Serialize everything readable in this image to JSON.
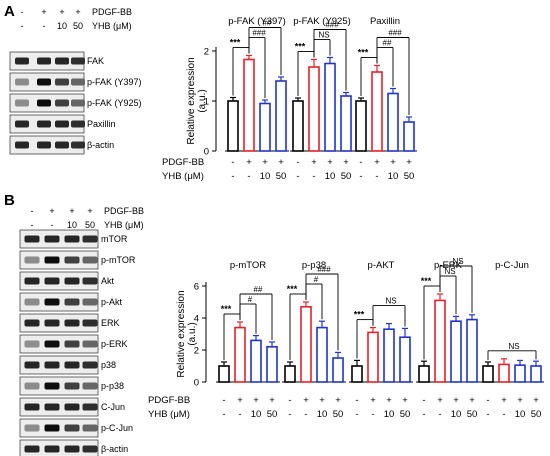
{
  "panel_a": {
    "letter": "A",
    "treatments": {
      "pdgf_label": "PDGF-BB",
      "yhb_label": "YHB (μM)",
      "pdgf": [
        "-",
        "+",
        "+",
        "+"
      ],
      "yhb": [
        "-",
        "-",
        "10",
        "50"
      ]
    },
    "blots": [
      "FAK",
      "p-FAK (Y397)",
      "p-FAK (Y925)",
      "Paxillin",
      "β-actin"
    ]
  },
  "panel_b": {
    "letter": "B",
    "treatments": {
      "pdgf_label": "PDGF-BB",
      "yhb_label": "YHB (μM)",
      "pdgf": [
        "-",
        "+",
        "+",
        "+"
      ],
      "yhb": [
        "-",
        "-",
        "10",
        "50"
      ]
    },
    "blots": [
      "mTOR",
      "p-mTOR",
      "Akt",
      "p-Akt",
      "ERK",
      "p-ERK",
      "p38",
      "p-p38",
      "C-Jun",
      "p-C-Jun",
      "β-actin"
    ]
  },
  "colors": {
    "control": "#000000",
    "pdgf": "#e8202a",
    "yhb": "#2035c8"
  },
  "chart_data": [
    {
      "type": "bar",
      "panel": "A",
      "ylabel": "Relative expression",
      "yunit": "(a.u.)",
      "ylim": [
        0,
        2
      ],
      "yticks": [
        0,
        1,
        2
      ],
      "row_labels": [
        "PDGF-BB",
        "YHB (μM)"
      ],
      "pdgf": [
        "-",
        "+",
        "+",
        "+"
      ],
      "yhb": [
        "-",
        "-",
        "10",
        "50"
      ],
      "groups": [
        {
          "title": "p-FAK (Y397)",
          "values": [
            1.0,
            1.83,
            0.95,
            1.4
          ],
          "errors": [
            0.07,
            0.08,
            0.07,
            0.08
          ],
          "sig": [
            {
              "label": "***",
              "from": 0,
              "to": 1
            },
            {
              "label": "###",
              "from": 1,
              "to": 2
            },
            {
              "label": "##",
              "from": 1,
              "to": 3
            }
          ]
        },
        {
          "title": "p-FAK (Y925)",
          "values": [
            1.0,
            1.68,
            1.75,
            1.1
          ],
          "errors": [
            0.06,
            0.15,
            0.12,
            0.07
          ],
          "sig": [
            {
              "label": "***",
              "from": 0,
              "to": 1
            },
            {
              "label": "NS",
              "from": 1,
              "to": 2
            },
            {
              "label": "###",
              "from": 1,
              "to": 3
            }
          ]
        },
        {
          "title": "Paxillin",
          "values": [
            1.0,
            1.58,
            1.15,
            0.58
          ],
          "errors": [
            0.06,
            0.13,
            0.1,
            0.1
          ],
          "sig": [
            {
              "label": "***",
              "from": 0,
              "to": 1
            },
            {
              "label": "##",
              "from": 1,
              "to": 2
            },
            {
              "label": "###",
              "from": 1,
              "to": 3
            }
          ]
        }
      ]
    },
    {
      "type": "bar",
      "panel": "B",
      "ylabel": "Relative expression",
      "yunit": "(a.u.)",
      "ylim": [
        0,
        6
      ],
      "yticks": [
        0,
        2,
        4,
        6
      ],
      "row_labels": [
        "PDGF-BB",
        "YHB (μM)"
      ],
      "pdgf": [
        "-",
        "+",
        "+",
        "+"
      ],
      "yhb": [
        "-",
        "-",
        "10",
        "50"
      ],
      "groups": [
        {
          "title": "p-mTOR",
          "values": [
            1.0,
            3.4,
            2.6,
            2.2
          ],
          "errors": [
            0.25,
            0.35,
            0.3,
            0.3
          ],
          "sig": [
            {
              "label": "***",
              "from": 0,
              "to": 1
            },
            {
              "label": "#",
              "from": 1,
              "to": 2
            },
            {
              "label": "##",
              "from": 1,
              "to": 3
            }
          ]
        },
        {
          "title": "p-p38",
          "values": [
            1.0,
            4.7,
            3.4,
            1.5
          ],
          "errors": [
            0.25,
            0.3,
            0.4,
            0.35
          ],
          "sig": [
            {
              "label": "***",
              "from": 0,
              "to": 1
            },
            {
              "label": "#",
              "from": 1,
              "to": 2
            },
            {
              "label": "###",
              "from": 1,
              "to": 3
            }
          ]
        },
        {
          "title": "p-AKT",
          "values": [
            1.0,
            3.1,
            3.3,
            2.8
          ],
          "errors": [
            0.35,
            0.3,
            0.35,
            0.55
          ],
          "sig": [
            {
              "label": "***",
              "from": 0,
              "to": 1
            },
            {
              "label": "NS",
              "from": 1,
              "to": 3
            }
          ]
        },
        {
          "title": "p-ERK",
          "values": [
            1.0,
            5.1,
            3.8,
            3.9
          ],
          "errors": [
            0.3,
            0.4,
            0.3,
            0.3
          ],
          "sig": [
            {
              "label": "***",
              "from": 0,
              "to": 1
            },
            {
              "label": "NS",
              "from": 1,
              "to": 2
            },
            {
              "label": "NS",
              "from": 1,
              "to": 3
            }
          ]
        },
        {
          "title": "p-C-Jun",
          "values": [
            1.0,
            1.1,
            1.05,
            1.0
          ],
          "errors": [
            0.25,
            0.35,
            0.3,
            0.3
          ],
          "sig": [
            {
              "label": "NS",
              "from": 0,
              "to": 3
            }
          ]
        }
      ]
    }
  ]
}
